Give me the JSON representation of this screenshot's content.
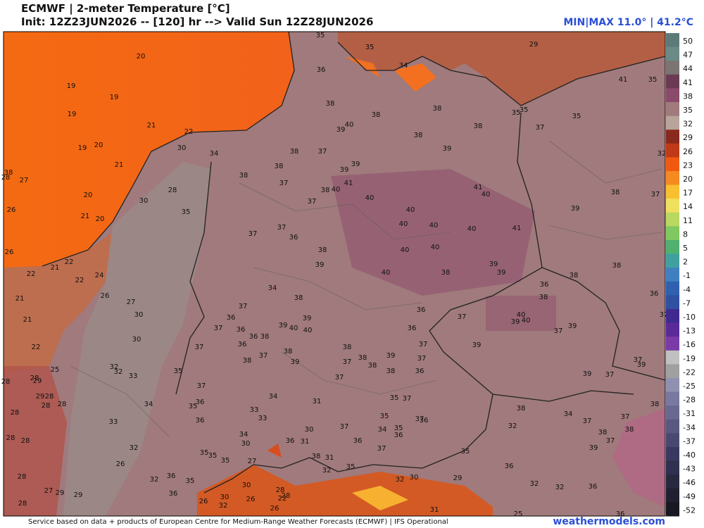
{
  "header": {
    "title": "ECMWF | 2-meter Temperature [°C]",
    "subtitle": "Init: 12Z23JUN2026 -- [120] hr --> Valid Sun 12Z28JUN2026",
    "minmax": "MIN|MAX 11.0° | 41.2°C"
  },
  "colorbar": {
    "labels": [
      "50",
      "47",
      "44",
      "41",
      "38",
      "35",
      "32",
      "29",
      "26",
      "23",
      "20",
      "17",
      "14",
      "11",
      "8",
      "5",
      "2",
      "-1",
      "-4",
      "-7",
      "-10",
      "-13",
      "-16",
      "-19",
      "-22",
      "-25",
      "-28",
      "-31",
      "-34",
      "-37",
      "-40",
      "-43",
      "-46",
      "-49",
      "-52"
    ]
  },
  "map": {
    "labels": [
      "20",
      "19",
      "19",
      "19",
      "21",
      "19",
      "20",
      "21",
      "20",
      "21",
      "20",
      "22",
      "30",
      "34",
      "28",
      "30",
      "35",
      "38",
      "38",
      "37",
      "38",
      "39",
      "39",
      "37",
      "38",
      "40",
      "41",
      "40",
      "37",
      "40",
      "40",
      "40",
      "40",
      "41",
      "40",
      "41",
      "39",
      "38",
      "37",
      "35",
      "37",
      "41",
      "35",
      "29",
      "35",
      "35",
      "34",
      "36",
      "38",
      "38",
      "38",
      "38",
      "38",
      "39",
      "39",
      "40",
      "37",
      "37",
      "36",
      "38",
      "39",
      "40",
      "40",
      "40",
      "38",
      "39",
      "39",
      "38",
      "38",
      "36",
      "38",
      "40",
      "40",
      "39",
      "39",
      "37",
      "37",
      "39",
      "36",
      "36",
      "37",
      "37",
      "36",
      "38",
      "38",
      "37",
      "38",
      "39",
      "38",
      "37",
      "39",
      "40",
      "40",
      "39",
      "38",
      "34",
      "37",
      "36",
      "37",
      "36",
      "36",
      "38",
      "36",
      "37",
      "38",
      "38",
      "39",
      "37",
      "35",
      "37",
      "35",
      "36",
      "36",
      "34",
      "33",
      "33",
      "32",
      "32",
      "30",
      "30",
      "27",
      "26",
      "22",
      "24",
      "21",
      "22",
      "22",
      "21",
      "21",
      "22",
      "25",
      "28",
      "28",
      "28",
      "28",
      "28",
      "28",
      "28",
      "28",
      "27",
      "29",
      "29",
      "32",
      "32",
      "36",
      "36",
      "35",
      "35",
      "35",
      "35",
      "32",
      "30",
      "26",
      "26",
      "30",
      "26",
      "22",
      "28",
      "28",
      "27",
      "30",
      "34",
      "33",
      "33",
      "34",
      "36",
      "31",
      "30",
      "31",
      "37",
      "36",
      "35",
      "37",
      "34",
      "35",
      "36",
      "35",
      "37",
      "37",
      "36",
      "35",
      "36",
      "32",
      "32",
      "36",
      "36",
      "32",
      "38",
      "34",
      "37",
      "38",
      "39",
      "37",
      "38",
      "37",
      "38",
      "37",
      "39",
      "37",
      "39",
      "36",
      "32",
      "37",
      "38",
      "31",
      "35",
      "32",
      "32",
      "30",
      "29",
      "31",
      "25",
      "35",
      "35",
      "38",
      "28",
      "27",
      "26",
      "26",
      "29",
      "28",
      "29",
      "28",
      "26"
    ]
  },
  "footer": {
    "credit": "Service based on data + products of European Centre for Medium-Range Weather Forecasts (ECMWF) | IFS Operational",
    "site": "weathermodels.com"
  }
}
